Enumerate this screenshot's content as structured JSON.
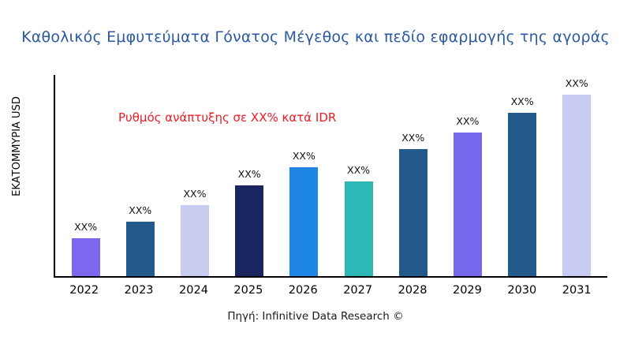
{
  "title": "Καθολικός Εμφυτεύματα Γόνατος Μέγεθος και πεδίο εφαρμογής της αγοράς",
  "y_axis_label": "ΕΚΑΤΟΜΜΥΡΙΑ USD",
  "annotation": {
    "text": "Ρυθμός ανάπτυξης σε XX% κατά IDR",
    "color": "#ed1c24"
  },
  "source": "Πηγή: Infinitive Data Research ©",
  "title_color": "#2c5aa0",
  "chart_data": {
    "type": "bar",
    "title": "Καθολικός Εμφυτεύματα Γόνατος Μέγεθος και πεδίο εφαρμογής της αγοράς",
    "xlabel": "",
    "ylabel": "ΕΚΑΤΟΜΜΥΡΙΑ USD",
    "categories": [
      "2022",
      "2023",
      "2024",
      "2025",
      "2026",
      "2027",
      "2028",
      "2029",
      "2030",
      "2031"
    ],
    "values": [
      21,
      30,
      39,
      50,
      60,
      52,
      70,
      79,
      90,
      100
    ],
    "value_note": "relative bar heights 0-100; no numeric y-axis ticks shown",
    "bar_labels": [
      "XX%",
      "XX%",
      "XX%",
      "XX%",
      "XX%",
      "XX%",
      "XX%",
      "XX%",
      "XX%",
      "XX%"
    ],
    "bar_colors": [
      "#7b68ee",
      "#235a8c",
      "#c8ccf0",
      "#1a2560",
      "#1e87e5",
      "#2db7b5",
      "#235a8c",
      "#7668ec",
      "#235a8c",
      "#c9ccf2"
    ],
    "annotations": [
      "Ρυθμός ανάπτυξης σε XX% κατά IDR"
    ],
    "grid": false,
    "legend": false,
    "ylim": [
      0,
      110
    ]
  }
}
